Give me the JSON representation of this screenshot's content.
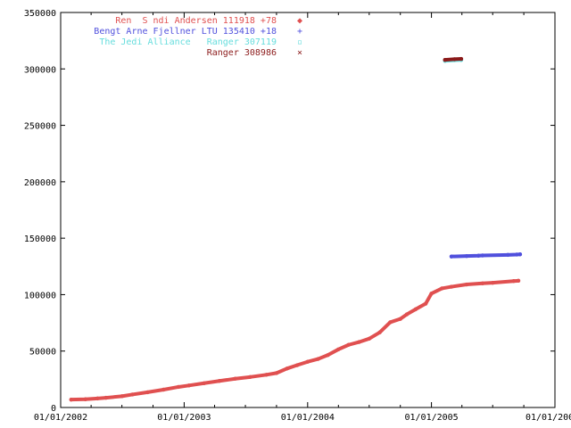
{
  "chart_data": {
    "type": "line",
    "title": "",
    "xlabel": "",
    "ylabel": "",
    "grid": false,
    "legend_placement": "top-left",
    "x_axis": {
      "type": "date",
      "min": "2002-01-01",
      "max": "2006-01-01",
      "ticks": [
        {
          "value": "2002-01-01",
          "label": "01/01/2002"
        },
        {
          "value": "2003-01-01",
          "label": "01/01/2003"
        },
        {
          "value": "2004-01-01",
          "label": "01/01/2004"
        },
        {
          "value": "2005-01-01",
          "label": "01/01/2005"
        },
        {
          "value": "2006-01-01",
          "label": "01/01/200"
        }
      ]
    },
    "y_axis": {
      "min": 0,
      "max": 350000,
      "ticks": [
        {
          "value": 0,
          "label": "0"
        },
        {
          "value": 50000,
          "label": "50000"
        },
        {
          "value": 100000,
          "label": "100000"
        },
        {
          "value": 150000,
          "label": "150000"
        },
        {
          "value": 200000,
          "label": "200000"
        },
        {
          "value": 250000,
          "label": "250000"
        },
        {
          "value": 300000,
          "label": "300000"
        },
        {
          "value": 350000,
          "label": "350000"
        }
      ]
    },
    "series": [
      {
        "name": "Ren  S ndi Andersen 111918 +78",
        "legend_symbol": "◆",
        "color": "#e05050",
        "connector_color": "#66cc66",
        "points": [
          [
            "2002-02-01",
            7000
          ],
          [
            "2002-03-15",
            7300
          ],
          [
            "2002-04-20",
            8000
          ],
          [
            "2002-05-15",
            8600
          ],
          [
            "2002-07-01",
            10000
          ],
          [
            "2002-08-01",
            11500
          ],
          [
            "2002-09-15",
            13500
          ],
          [
            "2002-11-01",
            15800
          ],
          [
            "2002-12-15",
            18200
          ],
          [
            "2003-01-15",
            19500
          ],
          [
            "2003-03-01",
            21500
          ],
          [
            "2003-04-15",
            23500
          ],
          [
            "2003-06-01",
            25500
          ],
          [
            "2003-07-15",
            27000
          ],
          [
            "2003-09-01",
            29000
          ],
          [
            "2003-10-01",
            30500
          ],
          [
            "2003-11-01",
            34500
          ],
          [
            "2003-12-01",
            37500
          ],
          [
            "2004-01-01",
            40500
          ],
          [
            "2004-02-01",
            43000
          ],
          [
            "2004-03-01",
            46500
          ],
          [
            "2004-04-01",
            51500
          ],
          [
            "2004-05-01",
            55500
          ],
          [
            "2004-06-01",
            58000
          ],
          [
            "2004-07-01",
            61000
          ],
          [
            "2004-08-01",
            66500
          ],
          [
            "2004-09-01",
            75500
          ],
          [
            "2004-10-01",
            78500
          ],
          [
            "2004-10-20",
            82500
          ],
          [
            "2004-11-15",
            87000
          ],
          [
            "2004-12-15",
            92000
          ],
          [
            "2005-01-01",
            101000
          ],
          [
            "2005-02-01",
            105500
          ],
          [
            "2005-03-01",
            107000
          ],
          [
            "2005-04-15",
            109000
          ],
          [
            "2005-06-01",
            110000
          ],
          [
            "2005-07-01",
            110500
          ],
          [
            "2005-09-01",
            112000
          ],
          [
            "2005-09-15",
            112300
          ]
        ]
      },
      {
        "name": "Bengt Arne Fjellner LTU 135410 +18",
        "legend_symbol": "+",
        "color": "#5050dd",
        "connector_color": "#dd44dd",
        "points": [
          [
            "2005-03-01",
            133800
          ],
          [
            "2005-04-15",
            134200
          ],
          [
            "2005-05-20",
            134500
          ],
          [
            "2005-06-01",
            134700
          ],
          [
            "2005-08-15",
            135200
          ],
          [
            "2005-09-10",
            135500
          ],
          [
            "2005-09-20",
            135700
          ]
        ]
      },
      {
        "name": "The Jedi Alliance   Ranger 307119",
        "legend_symbol": "▫",
        "color": "#66dddd",
        "connector_color": "#66dddd",
        "points": [
          [
            "2005-02-10",
            307100
          ],
          [
            "2005-03-10",
            307700
          ],
          [
            "2005-03-30",
            307900
          ]
        ]
      },
      {
        "name": "Ranger 308986",
        "legend_symbol": "×",
        "color": "#8b1a1a",
        "connector_color": "#8b1a1a",
        "points": [
          [
            "2005-02-10",
            308000
          ],
          [
            "2005-03-10",
            308600
          ],
          [
            "2005-03-30",
            308900
          ]
        ]
      }
    ]
  }
}
